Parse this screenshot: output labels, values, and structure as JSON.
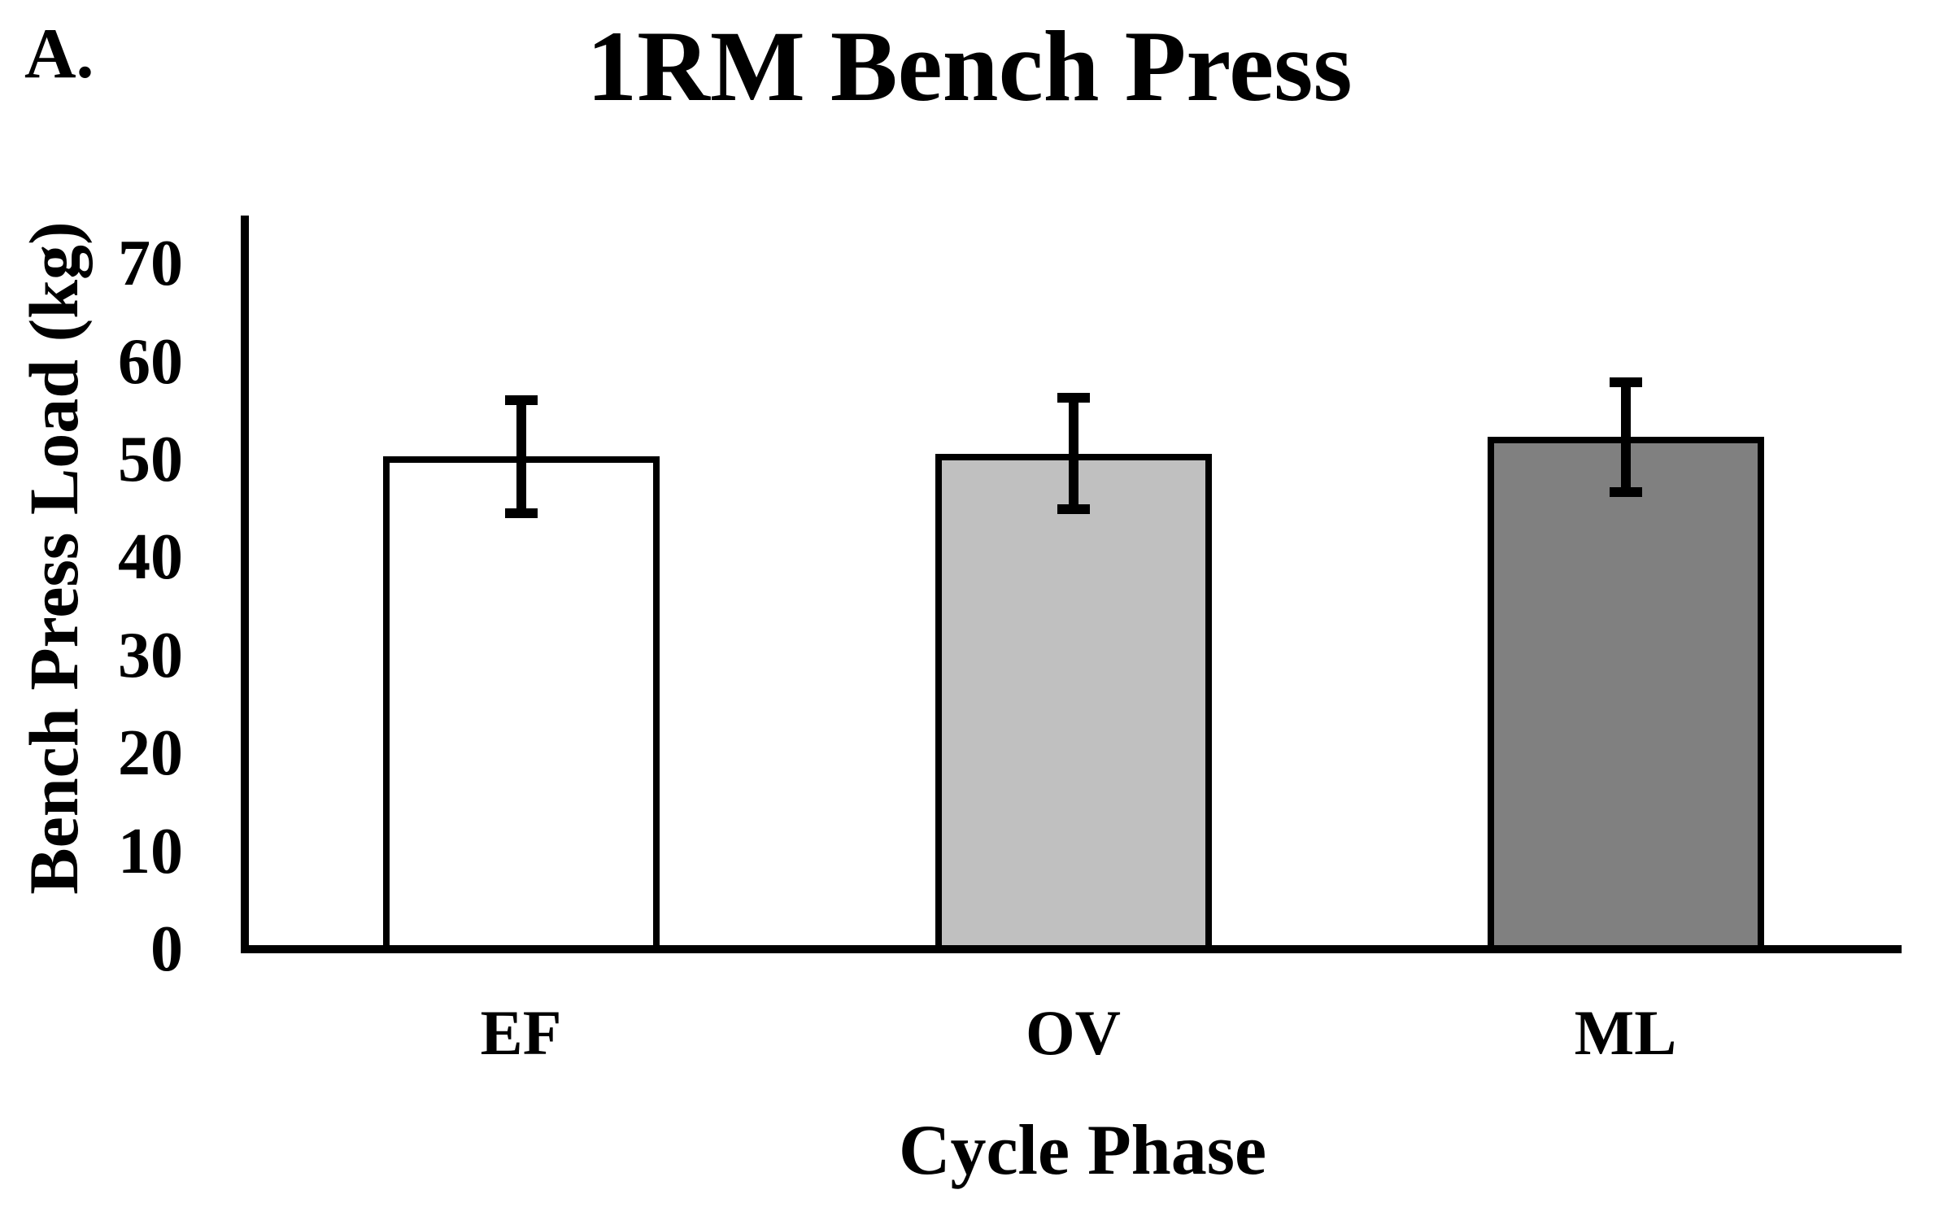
{
  "panel_label": "A.",
  "chart_data": {
    "type": "bar",
    "title": "1RM Bench Press",
    "xlabel": "Cycle Phase",
    "ylabel": "Bench Press Load (kg)",
    "categories": [
      "EF",
      "OV",
      "ML"
    ],
    "values": [
      50.3,
      50.6,
      52.3
    ],
    "errors": [
      5.8,
      5.7,
      5.6
    ],
    "series": [
      {
        "name": "EF",
        "value": 50.3,
        "error": 5.8,
        "fill": "#ffffff"
      },
      {
        "name": "OV",
        "value": 50.6,
        "error": 5.7,
        "fill": "#c0c0c0"
      },
      {
        "name": "ML",
        "value": 52.3,
        "error": 5.6,
        "fill": "#808080"
      }
    ],
    "bar_fill_colors": [
      "#ffffff",
      "#c0c0c0",
      "#808080"
    ],
    "bar_edge_color": "#000000",
    "error_bar_color": "#000000",
    "axis_color": "#000000",
    "text_color": "#000000",
    "yticks": [
      0,
      10,
      20,
      30,
      40,
      50,
      60,
      70
    ],
    "ylim": [
      0,
      75
    ],
    "grid": false,
    "legend": null
  }
}
